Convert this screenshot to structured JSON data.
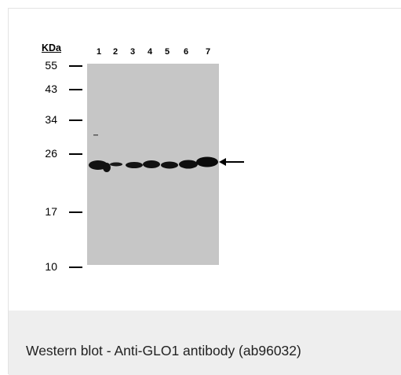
{
  "figure": {
    "unit_label": "KDa",
    "lanes": [
      "1",
      "2",
      "3",
      "4",
      "5",
      "6",
      "7"
    ],
    "markers": [
      "55",
      "43",
      "34",
      "26",
      "17",
      "10"
    ],
    "band_kda": 25
  },
  "caption": "Western blot - Anti-GLO1 antibody (ab96032)"
}
